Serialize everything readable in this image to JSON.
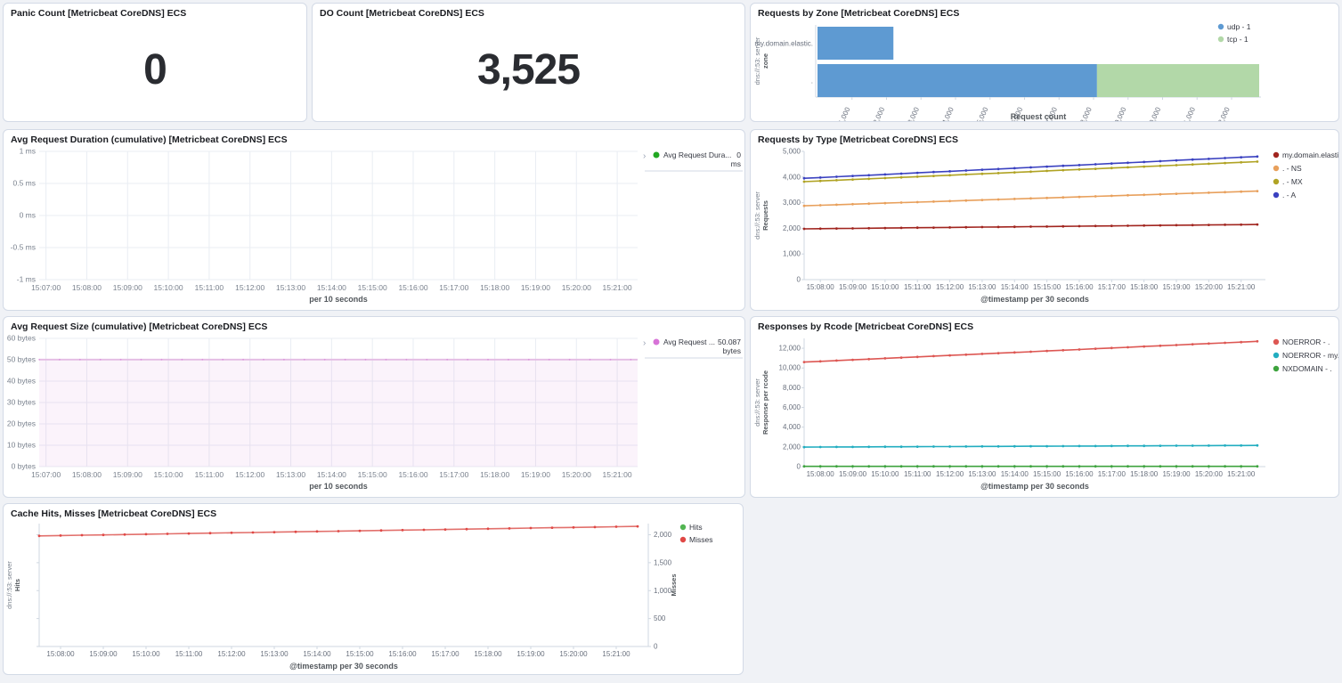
{
  "colors": {
    "page_bg": "#f0f2f6",
    "panel_border": "#d3dae6",
    "grid": "#e9edf3",
    "axis_line": "#cfd7e0",
    "title_text": "#1a1c21",
    "axis_text": "#69707d"
  },
  "panels": {
    "panic_count": {
      "title": "Panic Count [Metricbeat CoreDNS] ECS",
      "value": "0"
    },
    "do_count": {
      "title": "DO Count [Metricbeat CoreDNS] ECS",
      "value": "3,525"
    },
    "requests_by_zone": {
      "title": "Requests by Zone [Metricbeat CoreDNS] ECS"
    },
    "avg_request_duration": {
      "title": "Avg Request Duration (cumulative) [Metricbeat CoreDNS] ECS"
    },
    "requests_by_type": {
      "title": "Requests by Type [Metricbeat CoreDNS] ECS"
    },
    "avg_request_size": {
      "title": "Avg Request Size (cumulative) [Metricbeat CoreDNS] ECS"
    },
    "responses_by_rcode": {
      "title": "Responses by Rcode [Metricbeat CoreDNS] ECS"
    },
    "cache_hits_misses": {
      "title": "Cache Hits, Misses [Metricbeat CoreDNS] ECS"
    }
  },
  "chart_data": [
    {
      "id": "requests_by_zone",
      "type": "bar",
      "orientation": "horizontal",
      "stacked": true,
      "title": "Requests by Zone [Metricbeat CoreDNS] ECS",
      "categories": [
        "my.domain.elastic.",
        "."
      ],
      "series": [
        {
          "name": "udp - 1",
          "color": "#5e9ad2",
          "values": [
            2200,
            8100
          ]
        },
        {
          "name": "tcp - 1",
          "color": "#b2d8a8",
          "values": [
            0,
            4700
          ]
        }
      ],
      "xlabel": "Request count",
      "ylabel_lines": [
        "dns://:53: server",
        "zone"
      ],
      "xlim": [
        0,
        12800
      ],
      "xticks": [
        1000,
        2000,
        3000,
        4000,
        5000,
        6000,
        7000,
        8000,
        9000,
        10000,
        11000,
        12000
      ],
      "xtick_labels": [
        "1,000",
        "2,000",
        "3,000",
        "4,000",
        "5,000",
        "6,000",
        "7,000",
        "8,000",
        "9,000",
        "10,000",
        "11,000",
        "12,000"
      ],
      "legend_position": "top-right"
    },
    {
      "id": "avg_request_duration",
      "type": "line",
      "title": "Avg Request Duration (cumulative) [Metricbeat CoreDNS] ECS",
      "series": [
        {
          "name": "Avg Request Dura...",
          "color": "#22a822",
          "legend_value": "0 ms",
          "values": []
        }
      ],
      "ylim": [
        -1,
        1
      ],
      "yticks": [
        1,
        0.5,
        0,
        -0.5,
        -1
      ],
      "ytick_labels": [
        "1 ms",
        "0.5 ms",
        "0 ms",
        "-0.5 ms",
        "-1 ms"
      ],
      "xtick_labels": [
        "15:07:00",
        "15:08:00",
        "15:09:00",
        "15:10:00",
        "15:11:00",
        "15:12:00",
        "15:13:00",
        "15:14:00",
        "15:15:00",
        "15:16:00",
        "15:17:00",
        "15:18:00",
        "15:19:00",
        "15:20:00",
        "15:21:00"
      ],
      "xlabel": "per 10 seconds",
      "grid": true,
      "legend_position": "right"
    },
    {
      "id": "requests_by_type",
      "type": "line",
      "title": "Requests by Type [Metricbeat CoreDNS] ECS",
      "ylabel_lines": [
        "dns://:53: server",
        "Requests"
      ],
      "xlabel": "@timestamp per 30 seconds",
      "ylim": [
        0,
        5000
      ],
      "yticks": [
        5000,
        4000,
        3000,
        2000,
        1000,
        0
      ],
      "ytick_labels": [
        "5,000",
        "4,000",
        "3,000",
        "2,000",
        "1,000",
        "0"
      ],
      "xtick_labels": [
        "15:08:00",
        "15:09:00",
        "15:10:00",
        "15:11:00",
        "15:12:00",
        "15:13:00",
        "15:14:00",
        "15:15:00",
        "15:16:00",
        "15:17:00",
        "15:18:00",
        "15:19:00",
        "15:20:00",
        "15:21:00"
      ],
      "x_times": [
        "15:07:30",
        "15:08:00",
        "15:08:30",
        "15:09:00",
        "15:09:30",
        "15:10:00",
        "15:10:30",
        "15:11:00",
        "15:11:30",
        "15:12:00",
        "15:12:30",
        "15:13:00",
        "15:13:30",
        "15:14:00",
        "15:14:30",
        "15:15:00",
        "15:15:30",
        "15:16:00",
        "15:16:30",
        "15:17:00",
        "15:17:30",
        "15:18:00",
        "15:18:30",
        "15:19:00",
        "15:19:30",
        "15:20:00",
        "15:20:30",
        "15:21:00",
        "15:21:30"
      ],
      "series": [
        {
          "name": "my.domain.elastic. - A",
          "color": "#a1251f",
          "values": [
            1980,
            1986,
            1992,
            1998,
            2004,
            2010,
            2016,
            2023,
            2029,
            2035,
            2041,
            2047,
            2053,
            2059,
            2065,
            2071,
            2077,
            2083,
            2089,
            2095,
            2101,
            2107,
            2114,
            2120,
            2126,
            2132,
            2138,
            2144,
            2150
          ]
        },
        {
          "name": ". - NS",
          "color": "#e8a05c",
          "values": [
            2880,
            2900,
            2921,
            2941,
            2961,
            2982,
            3002,
            3022,
            3043,
            3063,
            3084,
            3104,
            3124,
            3145,
            3165,
            3185,
            3206,
            3226,
            3246,
            3267,
            3287,
            3307,
            3328,
            3348,
            3368,
            3389,
            3409,
            3429,
            3450
          ]
        },
        {
          "name": ". - MX",
          "color": "#b0a324",
          "values": [
            3820,
            3848,
            3876,
            3904,
            3931,
            3959,
            3987,
            4015,
            4043,
            4071,
            4099,
            4126,
            4154,
            4182,
            4210,
            4238,
            4266,
            4294,
            4321,
            4349,
            4377,
            4405,
            4433,
            4461,
            4489,
            4516,
            4544,
            4572,
            4600
          ]
        },
        {
          "name": ". - A",
          "color": "#3a41c0",
          "values": [
            3950,
            3980,
            4011,
            4041,
            4071,
            4102,
            4132,
            4163,
            4193,
            4223,
            4254,
            4284,
            4314,
            4345,
            4375,
            4405,
            4436,
            4466,
            4496,
            4527,
            4557,
            4588,
            4618,
            4648,
            4679,
            4709,
            4739,
            4770,
            4800
          ]
        }
      ],
      "legend_order": [
        "my.domain.elastic. - A",
        ". - NS",
        ". - MX",
        ". - A"
      ],
      "legend_position": "right"
    },
    {
      "id": "avg_request_size",
      "type": "area",
      "title": "Avg Request Size (cumulative) [Metricbeat CoreDNS] ECS",
      "series": [
        {
          "name": "Avg Request ...",
          "color": "#d773d7",
          "line_color": "#e3bce3",
          "fill": "rgba(213,134,213,0.10)",
          "legend_value": "50.087 bytes",
          "constant_value": 50.087,
          "x_range": [
            "15:07:00",
            "15:21:50"
          ]
        }
      ],
      "ylim": [
        0,
        60
      ],
      "yticks": [
        60,
        50,
        40,
        30,
        20,
        10,
        0
      ],
      "ytick_labels": [
        "60 bytes",
        "50 bytes",
        "40 bytes",
        "30 bytes",
        "20 bytes",
        "10 bytes",
        "0 bytes"
      ],
      "xtick_labels": [
        "15:07:00",
        "15:08:00",
        "15:09:00",
        "15:10:00",
        "15:11:00",
        "15:12:00",
        "15:13:00",
        "15:14:00",
        "15:15:00",
        "15:16:00",
        "15:17:00",
        "15:18:00",
        "15:19:00",
        "15:20:00",
        "15:21:00"
      ],
      "xlabel": "per 10 seconds",
      "grid": true,
      "legend_position": "right"
    },
    {
      "id": "responses_by_rcode",
      "type": "line",
      "title": "Responses by Rcode [Metricbeat CoreDNS] ECS",
      "ylabel_lines": [
        "dns://:53: server",
        "Response per rcode"
      ],
      "xlabel": "@timestamp per 30 seconds",
      "ylim": [
        0,
        13000
      ],
      "yticks": [
        12000,
        10000,
        8000,
        6000,
        4000,
        2000,
        0
      ],
      "ytick_labels": [
        "12,000",
        "10,000",
        "8,000",
        "6,000",
        "4,000",
        "2,000",
        "0"
      ],
      "xtick_labels": [
        "15:08:00",
        "15:09:00",
        "15:10:00",
        "15:11:00",
        "15:12:00",
        "15:13:00",
        "15:14:00",
        "15:15:00",
        "15:16:00",
        "15:17:00",
        "15:18:00",
        "15:19:00",
        "15:20:00",
        "15:21:00"
      ],
      "x_times": [
        "15:07:30",
        "15:08:00",
        "15:08:30",
        "15:09:00",
        "15:09:30",
        "15:10:00",
        "15:10:30",
        "15:11:00",
        "15:11:30",
        "15:12:00",
        "15:12:30",
        "15:13:00",
        "15:13:30",
        "15:14:00",
        "15:14:30",
        "15:15:00",
        "15:15:30",
        "15:16:00",
        "15:16:30",
        "15:17:00",
        "15:17:30",
        "15:18:00",
        "15:18:30",
        "15:19:00",
        "15:19:30",
        "15:20:00",
        "15:20:30",
        "15:21:00",
        "15:21:30"
      ],
      "series": [
        {
          "name": "NOERROR - .",
          "color": "#dd5753",
          "values": [
            10600,
            10675,
            10750,
            10825,
            10900,
            10975,
            11050,
            11125,
            11200,
            11275,
            11350,
            11425,
            11500,
            11575,
            11650,
            11725,
            11800,
            11875,
            11950,
            12025,
            12100,
            12175,
            12250,
            12325,
            12400,
            12475,
            12550,
            12625,
            12700
          ]
        },
        {
          "name": "NOERROR - my.dom...",
          "color": "#22adc0",
          "values": [
            1980,
            1986,
            1992,
            1998,
            2004,
            2010,
            2016,
            2023,
            2029,
            2035,
            2041,
            2047,
            2053,
            2059,
            2065,
            2071,
            2077,
            2083,
            2089,
            2095,
            2101,
            2107,
            2114,
            2120,
            2126,
            2132,
            2138,
            2144,
            2150
          ]
        },
        {
          "name": "NXDOMAIN - .",
          "color": "#3da33d",
          "values": [
            30,
            30,
            30,
            30,
            30,
            30,
            30,
            30,
            30,
            30,
            30,
            30,
            30,
            30,
            30,
            30,
            30,
            30,
            30,
            30,
            30,
            30,
            30,
            30,
            30,
            30,
            30,
            30,
            30
          ]
        }
      ],
      "legend_position": "right"
    },
    {
      "id": "cache_hits_misses",
      "type": "line",
      "title": "Cache Hits, Misses [Metricbeat CoreDNS] ECS",
      "ylabel_lines": [
        "dns://:53: server",
        "Hits"
      ],
      "ylabel_right": "Misses",
      "xlabel": "@timestamp per 30 seconds",
      "ylim": [
        0,
        2200
      ],
      "yticks": [
        2000,
        1500,
        1000,
        500,
        0
      ],
      "ytick_labels": [
        "2,000",
        "1,500",
        "1,000",
        "500",
        "0"
      ],
      "yaxis_labels_side": "right",
      "xtick_labels": [
        "15:08:00",
        "15:09:00",
        "15:10:00",
        "15:11:00",
        "15:12:00",
        "15:13:00",
        "15:14:00",
        "15:15:00",
        "15:16:00",
        "15:17:00",
        "15:18:00",
        "15:19:00",
        "15:20:00",
        "15:21:00"
      ],
      "x_times": [
        "15:07:30",
        "15:08:00",
        "15:08:30",
        "15:09:00",
        "15:09:30",
        "15:10:00",
        "15:10:30",
        "15:11:00",
        "15:11:30",
        "15:12:00",
        "15:12:30",
        "15:13:00",
        "15:13:30",
        "15:14:00",
        "15:14:30",
        "15:15:00",
        "15:15:30",
        "15:16:00",
        "15:16:30",
        "15:17:00",
        "15:17:30",
        "15:18:00",
        "15:18:30",
        "15:19:00",
        "15:19:30",
        "15:20:00",
        "15:20:30",
        "15:21:00",
        "15:21:30"
      ],
      "series": [
        {
          "name": "Hits",
          "color": "#52b552",
          "values": []
        },
        {
          "name": "Misses",
          "color": "#e2706c",
          "dot_color": "#e04845",
          "values": [
            1980,
            1986,
            1992,
            1998,
            2004,
            2010,
            2016,
            2023,
            2029,
            2035,
            2041,
            2047,
            2053,
            2059,
            2065,
            2071,
            2077,
            2083,
            2089,
            2095,
            2101,
            2107,
            2114,
            2120,
            2126,
            2132,
            2138,
            2144,
            2150
          ]
        }
      ],
      "legend_position": "right"
    }
  ]
}
